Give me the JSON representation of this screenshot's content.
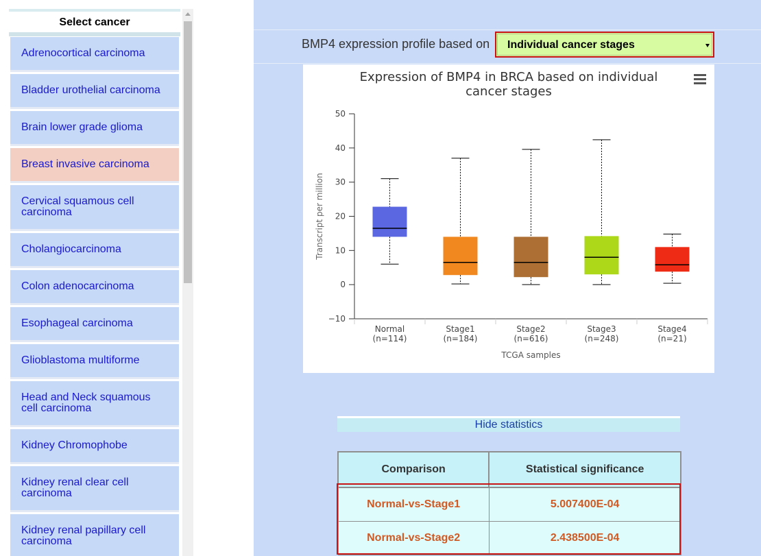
{
  "sidebar": {
    "header": "Select cancer",
    "items": [
      {
        "label": "Adrenocortical carcinoma",
        "selected": false
      },
      {
        "label": "Bladder urothelial carcinoma",
        "selected": false
      },
      {
        "label": "Brain lower grade glioma",
        "selected": false
      },
      {
        "label": "Breast invasive carcinoma",
        "selected": true
      },
      {
        "label": "Cervical squamous cell carcinoma",
        "selected": false
      },
      {
        "label": "Cholangiocarcinoma",
        "selected": false
      },
      {
        "label": "Colon adenocarcinoma",
        "selected": false
      },
      {
        "label": "Esophageal carcinoma",
        "selected": false
      },
      {
        "label": "Glioblastoma multiforme",
        "selected": false
      },
      {
        "label": "Head and Neck squamous cell carcinoma",
        "selected": false
      },
      {
        "label": "Kidney Chromophobe",
        "selected": false
      },
      {
        "label": "Kidney renal clear cell carcinoma",
        "selected": false
      },
      {
        "label": "Kidney renal papillary cell carcinoma",
        "selected": false
      }
    ]
  },
  "profile": {
    "label": "BMP4 expression profile based on",
    "selected_option": "Individual cancer stages"
  },
  "chart_data": {
    "type": "box",
    "title": "Expression of BMP4 in BRCA based on individual cancer stages",
    "xlabel": "TCGA samples",
    "ylabel": "Transcript per million",
    "ylim": [
      -10,
      50
    ],
    "yticks": [
      -10,
      0,
      10,
      20,
      30,
      40,
      50
    ],
    "grid": false,
    "categories": [
      {
        "name": "Normal",
        "n": "(n=114)",
        "color": "#5a67e0",
        "min": 6,
        "q1": 14,
        "median": 16.5,
        "q3": 22.8,
        "max": 31
      },
      {
        "name": "Stage1",
        "n": "(n=184)",
        "color": "#f0871f",
        "min": 0.2,
        "q1": 2.8,
        "median": 6.5,
        "q3": 14,
        "max": 37
      },
      {
        "name": "Stage2",
        "n": "(n=616)",
        "color": "#ad6f33",
        "min": 0,
        "q1": 2.2,
        "median": 6.5,
        "q3": 14,
        "max": 39.6
      },
      {
        "name": "Stage3",
        "n": "(n=248)",
        "color": "#add81a",
        "min": 0,
        "q1": 3,
        "median": 8,
        "q3": 14.2,
        "max": 42.4
      },
      {
        "name": "Stage4",
        "n": "(n=21)",
        "color": "#ee2b14",
        "min": 0.4,
        "q1": 3.8,
        "median": 5.8,
        "q3": 11,
        "max": 14.8
      }
    ]
  },
  "statistics": {
    "toggle_label": "Hide statistics",
    "headers": [
      "Comparison",
      "Statistical significance"
    ],
    "rows": [
      {
        "comparison": "Normal-vs-Stage1",
        "significance": "5.007400E-04"
      },
      {
        "comparison": "Normal-vs-Stage2",
        "significance": "2.438500E-04"
      }
    ]
  },
  "colors": {
    "panel_bg": "#c9daf8",
    "sidebar_item_bg": "#c6d9f7",
    "selected_item_bg": "#f2cfc2",
    "link_text": "#1a1acc",
    "highlight_border": "#c81414",
    "stat_value": "#d05a24"
  }
}
